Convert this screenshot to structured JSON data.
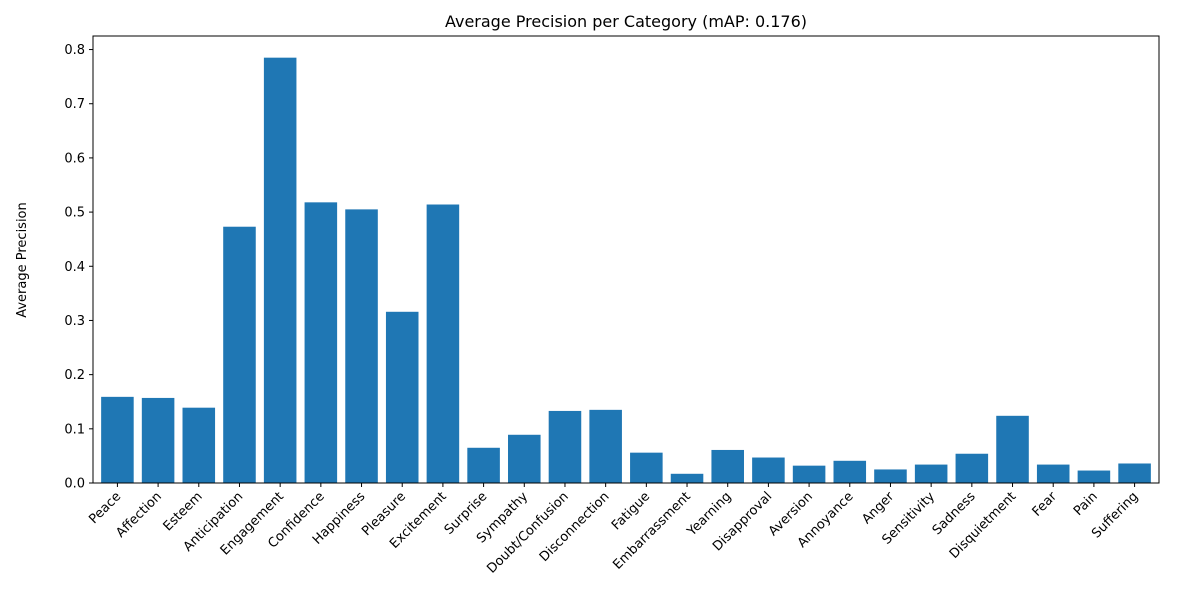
{
  "chart_data": {
    "type": "bar",
    "title": "Average Precision per Category (mAP: 0.176)",
    "xlabel": "",
    "ylabel": "Average Precision",
    "ylim": [
      0,
      0.825
    ],
    "yticks": [
      0.0,
      0.1,
      0.2,
      0.3,
      0.4,
      0.5,
      0.6,
      0.7,
      0.8
    ],
    "ytick_labels": [
      "0.0",
      "0.1",
      "0.2",
      "0.3",
      "0.4",
      "0.5",
      "0.6",
      "0.7",
      "0.8"
    ],
    "grid": false,
    "bar_color": "#1f77b4",
    "categories": [
      "Peace",
      "Affection",
      "Esteem",
      "Anticipation",
      "Engagement",
      "Confidence",
      "Happiness",
      "Pleasure",
      "Excitement",
      "Surprise",
      "Sympathy",
      "Doubt/Confusion",
      "Disconnection",
      "Fatigue",
      "Embarrassment",
      "Yearning",
      "Disapproval",
      "Aversion",
      "Annoyance",
      "Anger",
      "Sensitivity",
      "Sadness",
      "Disquietment",
      "Fear",
      "Pain",
      "Suffering"
    ],
    "values": [
      0.159,
      0.157,
      0.139,
      0.473,
      0.785,
      0.518,
      0.505,
      0.316,
      0.514,
      0.065,
      0.089,
      0.133,
      0.135,
      0.056,
      0.017,
      0.061,
      0.047,
      0.032,
      0.041,
      0.025,
      0.034,
      0.054,
      0.124,
      0.034,
      0.023,
      0.036
    ]
  }
}
